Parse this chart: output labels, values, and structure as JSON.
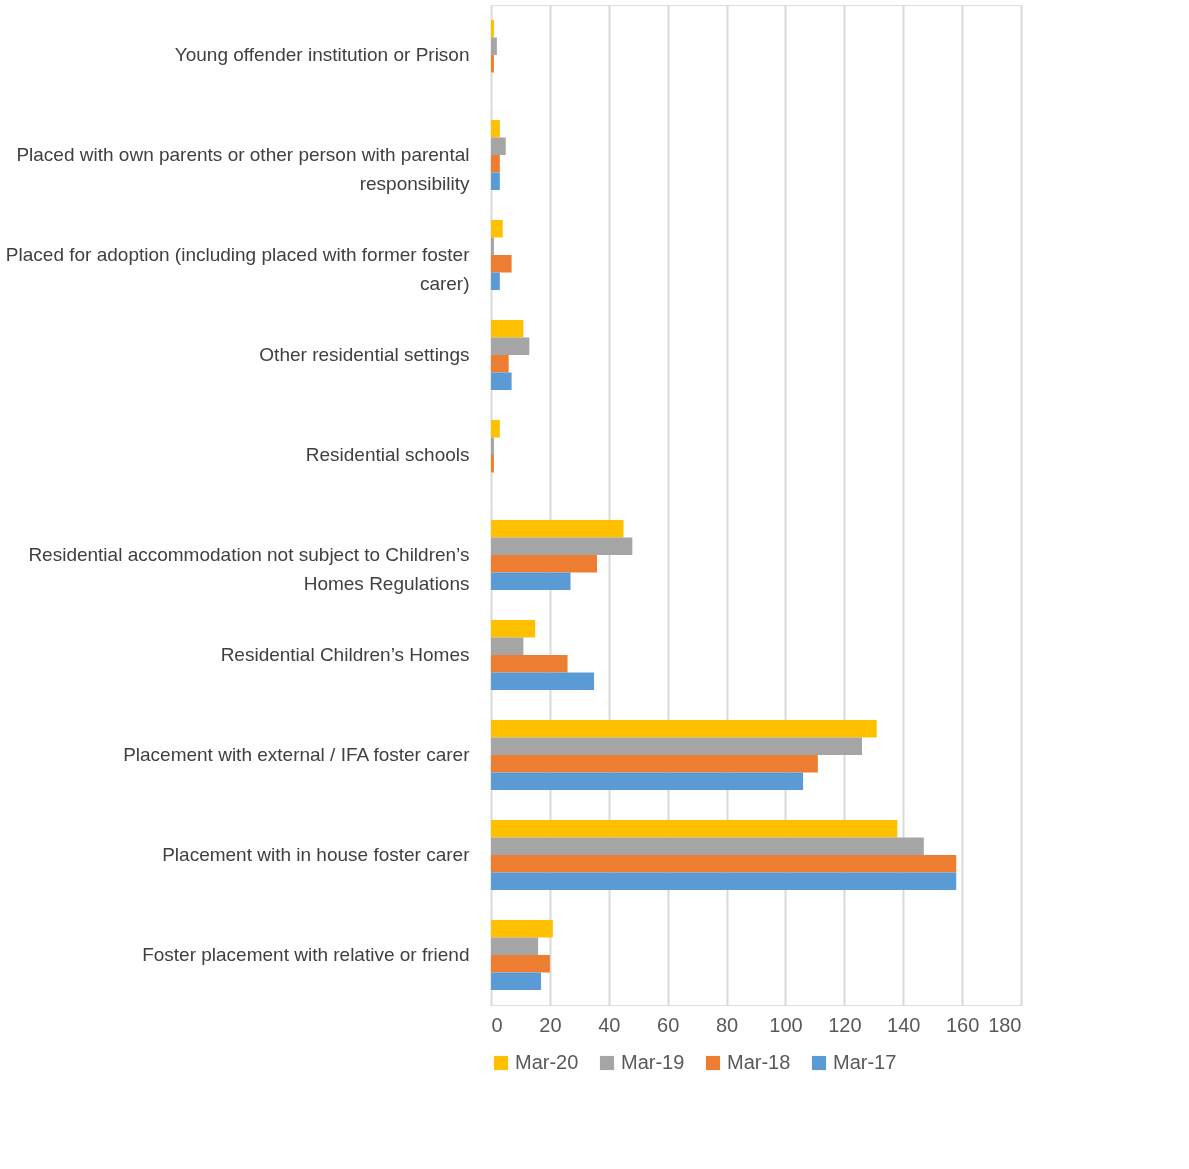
{
  "chart_data": {
    "type": "bar",
    "orientation": "horizontal",
    "categories": [
      "Young offender institution or Prison",
      "Placed with own parents or other person with parental responsibility",
      "Placed for adoption (including placed with former foster carer)",
      "Other residential settings",
      "Residential schools",
      "Residential accommodation not subject to Children’s Homes Regulations",
      "Residential Children’s Homes",
      "Placement with external / IFA foster carer",
      "Placement with in house foster carer",
      "Foster placement with relative or friend"
    ],
    "series": [
      {
        "name": "Mar-20",
        "color": "#ffc000",
        "values": [
          1,
          3,
          4,
          11,
          3,
          45,
          15,
          131,
          138,
          21
        ]
      },
      {
        "name": "Mar-19",
        "color": "#a5a5a5",
        "values": [
          2,
          5,
          1,
          13,
          1,
          48,
          11,
          126,
          147,
          16
        ]
      },
      {
        "name": "Mar-18",
        "color": "#ed7d31",
        "values": [
          1,
          3,
          7,
          6,
          1,
          36,
          26,
          111,
          158,
          20
        ]
      },
      {
        "name": "Mar-17",
        "color": "#5b9bd5",
        "values": [
          null,
          3,
          3,
          7,
          null,
          27,
          35,
          106,
          158,
          17
        ]
      }
    ],
    "xlim": [
      0,
      180
    ],
    "xticks": [
      0,
      20,
      40,
      60,
      80,
      100,
      120,
      140,
      160,
      180
    ],
    "grid": "x",
    "legend": "bottom"
  }
}
